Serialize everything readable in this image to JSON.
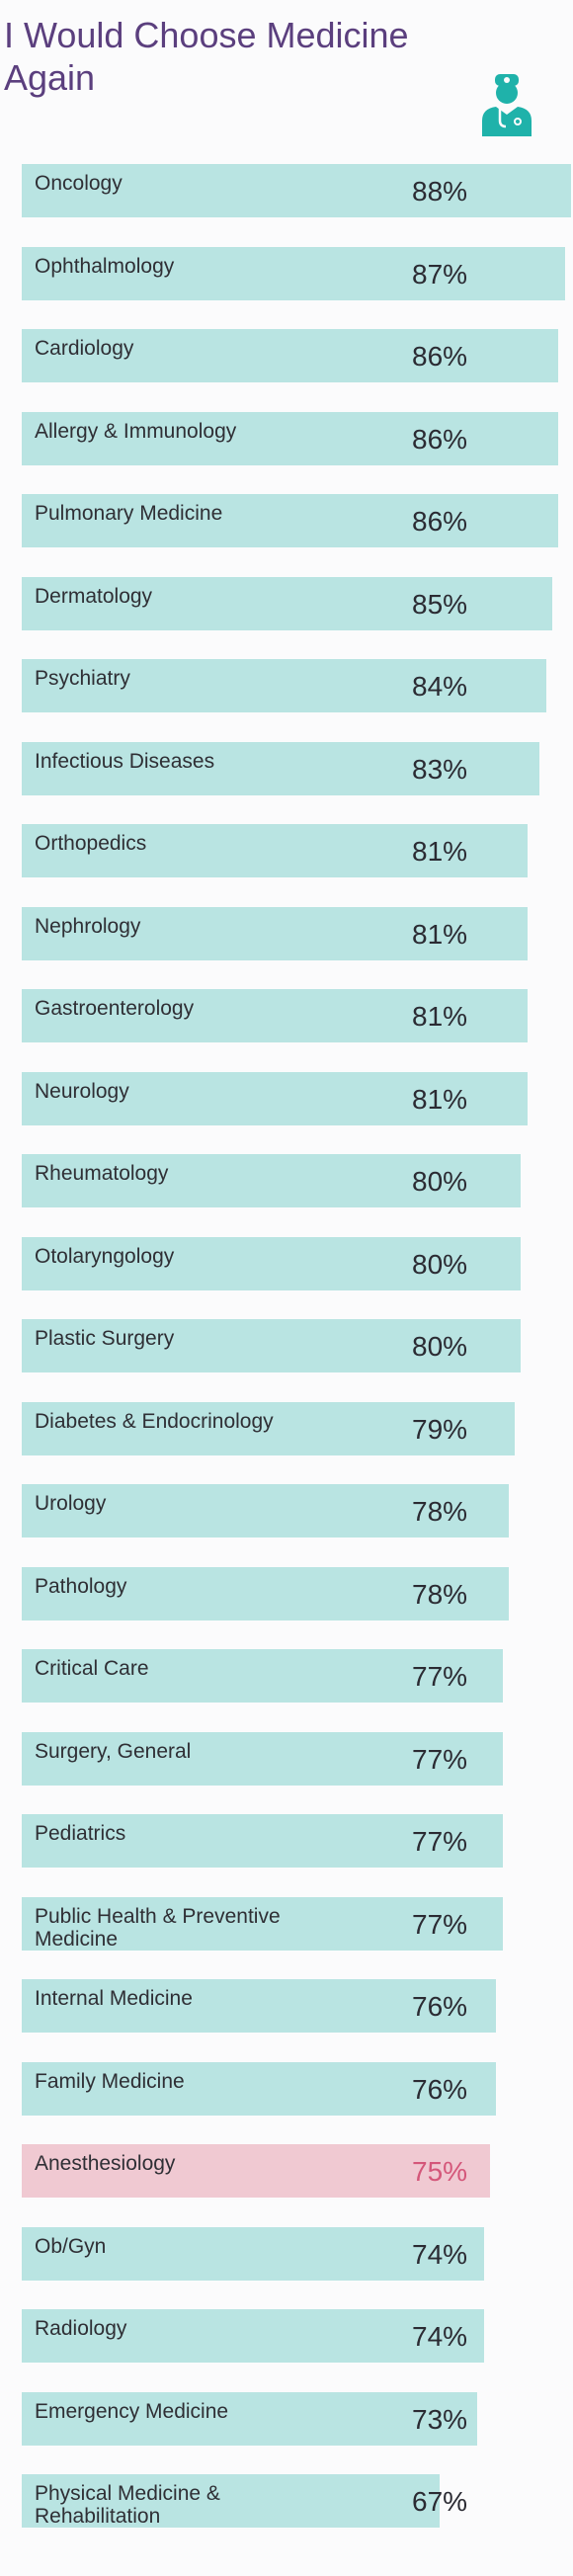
{
  "chart_data": {
    "type": "bar",
    "orientation": "horizontal",
    "title": "I Would Choose Medicine Again",
    "value_suffix": "%",
    "categories": [
      "Oncology",
      "Ophthalmology",
      "Cardiology",
      "Allergy & Immunology",
      "Pulmonary Medicine",
      "Dermatology",
      "Psychiatry",
      "Infectious Diseases",
      "Orthopedics",
      "Nephrology",
      "Gastroenterology",
      "Neurology",
      "Rheumatology",
      "Otolaryngology",
      "Plastic Surgery",
      "Diabetes & Endocrinology",
      "Urology",
      "Pathology",
      "Critical Care",
      "Surgery, General",
      "Pediatrics",
      "Public Health & Preventive Medicine",
      "Internal Medicine",
      "Family Medicine",
      "Anesthesiology",
      "Ob/Gyn",
      "Radiology",
      "Emergency Medicine",
      "Physical Medicine & Rehabilitation"
    ],
    "values": [
      88,
      87,
      86,
      86,
      86,
      85,
      84,
      83,
      81,
      81,
      81,
      81,
      80,
      80,
      80,
      79,
      78,
      78,
      77,
      77,
      77,
      77,
      76,
      76,
      75,
      74,
      74,
      73,
      67
    ],
    "highlight_category": "Anesthesiology",
    "colors": {
      "bar": "#b9e4e2",
      "highlight_bar": "#f0c9d2",
      "value_text": "#2b2b33",
      "highlight_value_text": "#d4577a",
      "title": "#5b3f7e",
      "icon": "#1fb2aa"
    },
    "grid": false,
    "legend": "none"
  },
  "icon": {
    "name": "doctor-icon"
  }
}
